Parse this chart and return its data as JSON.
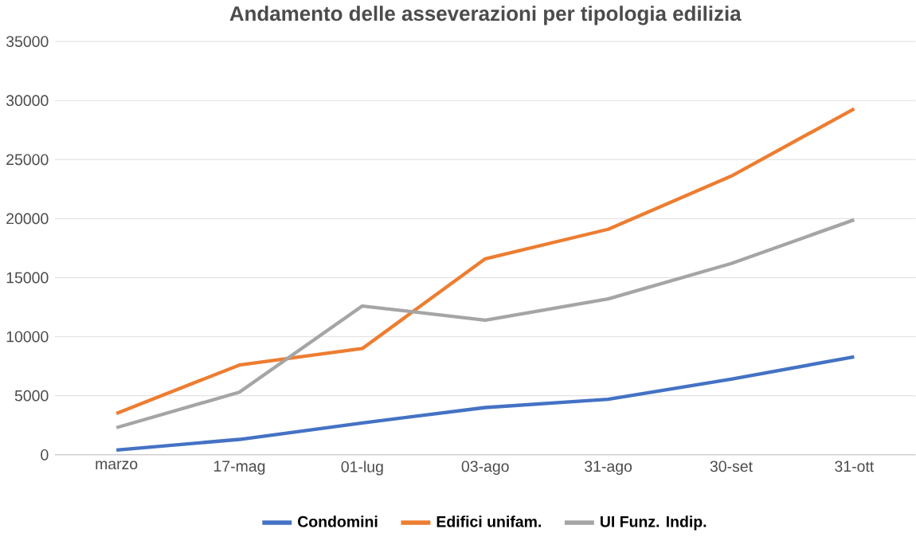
{
  "chart_data": {
    "type": "line",
    "title": "Andamento delle asseverazioni per tipologia edilizia",
    "categories": [
      "marzo",
      "17-mag",
      "01-lug",
      "03-ago",
      "31-ago",
      "30-set",
      "31-ott"
    ],
    "series": [
      {
        "name": "Condomini",
        "color": "#4472c4",
        "values": [
          400,
          1300,
          2700,
          4000,
          4700,
          6400,
          8300
        ]
      },
      {
        "name": "Edifici unifam.",
        "color": "#ed7d31",
        "values": [
          3500,
          7600,
          9000,
          16600,
          19100,
          23600,
          29300
        ]
      },
      {
        "name": "UI Funz. Indip.",
        "color": "#a5a5a5",
        "values": [
          2300,
          5300,
          12600,
          11400,
          13200,
          16200,
          19900
        ]
      }
    ],
    "ylim": [
      0,
      35000
    ],
    "yticks": [
      0,
      5000,
      10000,
      15000,
      20000,
      25000,
      30000,
      35000
    ],
    "grid": "y",
    "legend": "bottom",
    "marker": "none",
    "line_style": "solid"
  }
}
